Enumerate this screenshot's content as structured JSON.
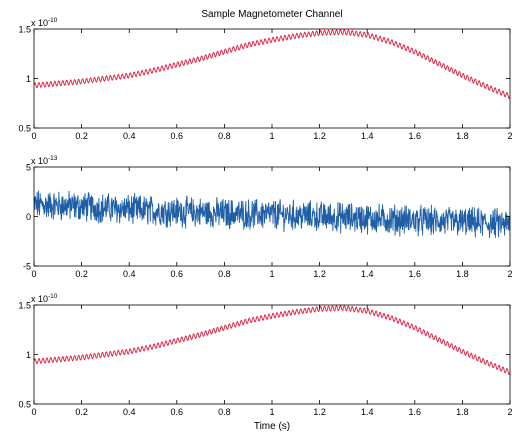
{
  "figure": {
    "title": "Sample Magnetometer Channel",
    "xlabel": "Time (s)"
  },
  "chart_data": [
    {
      "type": "line",
      "title": "Sample Magnetometer Channel",
      "xlabel": "",
      "ylabel": "",
      "xlim": [
        0,
        2
      ],
      "ylim": [
        0.5,
        1.5
      ],
      "exponent_label": "x 10",
      "exponent_power": "-10",
      "x_ticks": [
        "0",
        "0.2",
        "0.4",
        "0.6",
        "0.8",
        "1",
        "1.2",
        "1.4",
        "1.6",
        "1.8",
        "2"
      ],
      "y_ticks": [
        "0.5",
        "1",
        "1.5"
      ],
      "grid": false,
      "series_color": "#e0193a",
      "series": [
        {
          "x": [
            0,
            0.1,
            0.2,
            0.3,
            0.4,
            0.5,
            0.6,
            0.7,
            0.8,
            0.9,
            1.0,
            1.1,
            1.2,
            1.3,
            1.4,
            1.5,
            1.6,
            1.7,
            1.8,
            1.9,
            2.0
          ],
          "values": [
            0.93,
            0.95,
            0.97,
            1.0,
            1.03,
            1.08,
            1.14,
            1.2,
            1.27,
            1.34,
            1.39,
            1.43,
            1.46,
            1.47,
            1.44,
            1.37,
            1.27,
            1.15,
            1.03,
            0.92,
            0.82
          ],
          "ripple_amplitude": 0.025,
          "ripple_frequency_hz": 60
        }
      ]
    },
    {
      "type": "line",
      "title": "",
      "xlabel": "",
      "ylabel": "",
      "xlim": [
        0,
        2
      ],
      "ylim": [
        -5,
        5
      ],
      "exponent_label": "x 10",
      "exponent_power": "-13",
      "x_ticks": [
        "0",
        "0.2",
        "0.4",
        "0.6",
        "0.8",
        "1",
        "1.2",
        "1.4",
        "1.6",
        "1.8",
        "2"
      ],
      "y_ticks": [
        "-5",
        "0",
        "5"
      ],
      "grid": false,
      "series_color": "#1f5fa8",
      "series": [
        {
          "x": [
            0,
            0.2,
            0.4,
            0.6,
            0.8,
            1.0,
            1.2,
            1.4,
            1.6,
            1.8,
            2.0
          ],
          "values": [
            1.2,
            1.0,
            0.7,
            0.5,
            0.3,
            0.2,
            0.0,
            -0.2,
            -0.4,
            -0.6,
            -0.8
          ],
          "noise_amplitude": 1.3
        }
      ]
    },
    {
      "type": "line",
      "title": "",
      "xlabel": "Time (s)",
      "ylabel": "",
      "xlim": [
        0,
        2
      ],
      "ylim": [
        0.5,
        1.5
      ],
      "exponent_label": "x 10",
      "exponent_power": "-10",
      "x_ticks": [
        "0",
        "0.2",
        "0.4",
        "0.6",
        "0.8",
        "1",
        "1.2",
        "1.4",
        "1.6",
        "1.8",
        "2"
      ],
      "y_ticks": [
        "0.5",
        "1",
        "1.5"
      ],
      "grid": false,
      "series_color": "#e0193a",
      "series": [
        {
          "x": [
            0,
            0.1,
            0.2,
            0.3,
            0.4,
            0.5,
            0.6,
            0.7,
            0.8,
            0.9,
            1.0,
            1.1,
            1.2,
            1.3,
            1.4,
            1.5,
            1.6,
            1.7,
            1.8,
            1.9,
            2.0
          ],
          "values": [
            0.93,
            0.95,
            0.97,
            1.0,
            1.03,
            1.08,
            1.14,
            1.2,
            1.27,
            1.34,
            1.39,
            1.43,
            1.46,
            1.47,
            1.44,
            1.37,
            1.27,
            1.15,
            1.03,
            0.92,
            0.82
          ],
          "ripple_amplitude": 0.025,
          "ripple_frequency_hz": 60
        }
      ]
    }
  ]
}
